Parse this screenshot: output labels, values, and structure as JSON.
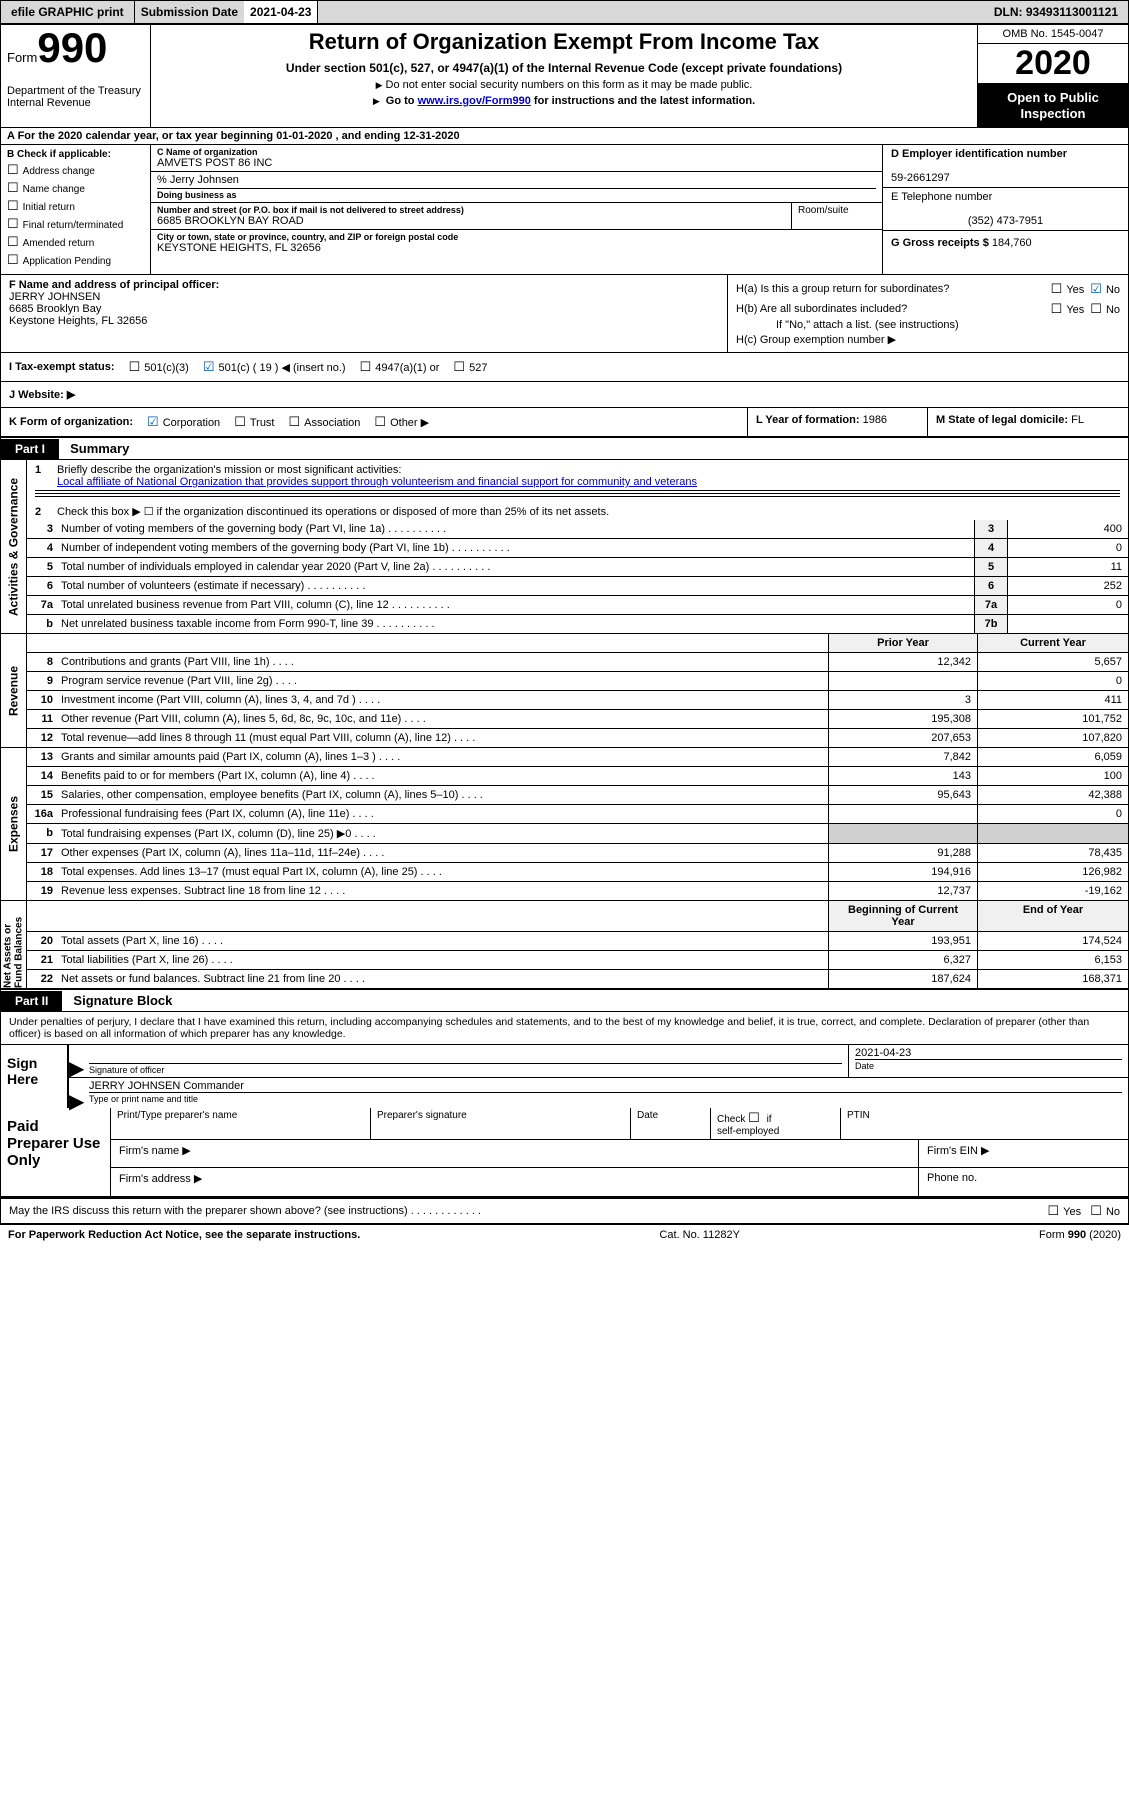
{
  "topbar": {
    "efile": "efile GRAPHIC print",
    "sub_label": "Submission Date",
    "sub_date": "2021-04-23",
    "dln": "DLN: 93493113001121"
  },
  "header": {
    "form_prefix": "Form",
    "form_number": "990",
    "dept1": "Department of the Treasury",
    "dept2": "Internal Revenue",
    "title": "Return of Organization Exempt From Income Tax",
    "sub1": "Under section 501(c), 527, or 4947(a)(1) of the Internal Revenue Code (except private foundations)",
    "sub2": "Do not enter social security numbers on this form as it may be made public.",
    "sub3_a": "Go to ",
    "sub3_link": "www.irs.gov/Form990",
    "sub3_b": " for instructions and the latest information.",
    "omb": "OMB No. 1545-0047",
    "year": "2020",
    "inspect": "Open to Public Inspection"
  },
  "A": {
    "text": "A For the 2020 calendar year, or tax year beginning 01-01-2020   , and ending 12-31-2020"
  },
  "B": {
    "label": "B Check if applicable:",
    "opts": [
      "Address change",
      "Name change",
      "Initial return",
      "Final return/terminated",
      "Amended return",
      "Application Pending"
    ]
  },
  "C": {
    "name_label": "C Name of organization",
    "name": "AMVETS POST 86 INC",
    "care_of": "% Jerry Johnsen",
    "dba_label": "Doing business as",
    "dba": "",
    "street_label": "Number and street (or P.O. box if mail is not delivered to street address)",
    "room_label": "Room/suite",
    "street": "6685 BROOKLYN BAY ROAD",
    "city_label": "City or town, state or province, country, and ZIP or foreign postal code",
    "city": "KEYSTONE HEIGHTS, FL  32656"
  },
  "D": {
    "label": "D Employer identification number",
    "value": "59-2661297"
  },
  "E": {
    "label": "E Telephone number",
    "value": "(352) 473-7951"
  },
  "G": {
    "label": "G Gross receipts $",
    "value": "184,760"
  },
  "F": {
    "label": "F  Name and address of principal officer:",
    "name": "JERRY JOHNSEN",
    "addr1": "6685 Brooklyn Bay",
    "addr2": "Keystone Heights, FL  32656"
  },
  "H": {
    "a": "H(a)  Is this a group return for subordinates?",
    "b": "H(b)  Are all subordinates included?",
    "b_note": "If \"No,\" attach a list. (see instructions)",
    "c": "H(c)  Group exemption number ▶",
    "yes": "Yes",
    "no": "No"
  },
  "I": {
    "label": "I  Tax-exempt status:",
    "opt1": "501(c)(3)",
    "opt2": "501(c) ( 19 ) ◀ (insert no.)",
    "opt3": "4947(a)(1) or",
    "opt4": "527"
  },
  "J": {
    "label": "J  Website: ▶"
  },
  "K": {
    "label": "K Form of organization:",
    "o1": "Corporation",
    "o2": "Trust",
    "o3": "Association",
    "o4": "Other ▶"
  },
  "L": {
    "label": "L Year of formation:",
    "value": "1986"
  },
  "M": {
    "label": "M State of legal domicile:",
    "value": "FL"
  },
  "part1": {
    "hdr": "Part I",
    "title": "Summary"
  },
  "s1": {
    "sidebar": "Activities & Governance",
    "l1_label": "Briefly describe the organization's mission or most significant activities:",
    "l1_text": "Local affiliate of National Organization that provides support through volunteerism and financial support for community and veterans",
    "l2": "Check this box ▶ ☐  if the organization discontinued its operations or disposed of more than 25% of its net assets.",
    "rows": [
      {
        "n": "3",
        "d": "Number of voting members of the governing body (Part VI, line 1a)",
        "c": "3",
        "v": "400"
      },
      {
        "n": "4",
        "d": "Number of independent voting members of the governing body (Part VI, line 1b)",
        "c": "4",
        "v": "0"
      },
      {
        "n": "5",
        "d": "Total number of individuals employed in calendar year 2020 (Part V, line 2a)",
        "c": "5",
        "v": "11"
      },
      {
        "n": "6",
        "d": "Total number of volunteers (estimate if necessary)",
        "c": "6",
        "v": "252"
      },
      {
        "n": "7a",
        "d": "Total unrelated business revenue from Part VIII, column (C), line 12",
        "c": "7a",
        "v": "0"
      },
      {
        "n": "b",
        "d": "Net unrelated business taxable income from Form 990-T, line 39",
        "c": "7b",
        "v": ""
      }
    ]
  },
  "pycy": {
    "py": "Prior Year",
    "cy": "Current Year",
    "boy": "Beginning of Current Year",
    "eoy": "End of Year"
  },
  "s2": {
    "sidebar": "Revenue",
    "rows": [
      {
        "n": "8",
        "d": "Contributions and grants (Part VIII, line 1h)",
        "py": "12,342",
        "cy": "5,657"
      },
      {
        "n": "9",
        "d": "Program service revenue (Part VIII, line 2g)",
        "py": "",
        "cy": "0"
      },
      {
        "n": "10",
        "d": "Investment income (Part VIII, column (A), lines 3, 4, and 7d )",
        "py": "3",
        "cy": "411"
      },
      {
        "n": "11",
        "d": "Other revenue (Part VIII, column (A), lines 5, 6d, 8c, 9c, 10c, and 11e)",
        "py": "195,308",
        "cy": "101,752"
      },
      {
        "n": "12",
        "d": "Total revenue—add lines 8 through 11 (must equal Part VIII, column (A), line 12)",
        "py": "207,653",
        "cy": "107,820"
      }
    ]
  },
  "s3": {
    "sidebar": "Expenses",
    "rows": [
      {
        "n": "13",
        "d": "Grants and similar amounts paid (Part IX, column (A), lines 1–3 )",
        "py": "7,842",
        "cy": "6,059"
      },
      {
        "n": "14",
        "d": "Benefits paid to or for members (Part IX, column (A), line 4)",
        "py": "143",
        "cy": "100"
      },
      {
        "n": "15",
        "d": "Salaries, other compensation, employee benefits (Part IX, column (A), lines 5–10)",
        "py": "95,643",
        "cy": "42,388"
      },
      {
        "n": "16a",
        "d": "Professional fundraising fees (Part IX, column (A), line 11e)",
        "py": "",
        "cy": "0"
      },
      {
        "n": "b",
        "d": "Total fundraising expenses (Part IX, column (D), line 25) ▶0",
        "py": "__GREY__",
        "cy": "__GREY__"
      },
      {
        "n": "17",
        "d": "Other expenses (Part IX, column (A), lines 11a–11d, 11f–24e)",
        "py": "91,288",
        "cy": "78,435"
      },
      {
        "n": "18",
        "d": "Total expenses. Add lines 13–17 (must equal Part IX, column (A), line 25)",
        "py": "194,916",
        "cy": "126,982"
      },
      {
        "n": "19",
        "d": "Revenue less expenses. Subtract line 18 from line 12",
        "py": "12,737",
        "cy": "-19,162"
      }
    ]
  },
  "s4": {
    "sidebar": "Net Assets or Fund Balances",
    "rows": [
      {
        "n": "20",
        "d": "Total assets (Part X, line 16)",
        "py": "193,951",
        "cy": "174,524"
      },
      {
        "n": "21",
        "d": "Total liabilities (Part X, line 26)",
        "py": "6,327",
        "cy": "6,153"
      },
      {
        "n": "22",
        "d": "Net assets or fund balances. Subtract line 21 from line 20",
        "py": "187,624",
        "cy": "168,371"
      }
    ]
  },
  "part2": {
    "hdr": "Part II",
    "title": "Signature Block"
  },
  "sig": {
    "intro": "Under penalties of perjury, I declare that I have examined this return, including accompanying schedules and statements, and to the best of my knowledge and belief, it is true, correct, and complete. Declaration of preparer (other than officer) is based on all information of which preparer has any knowledge.",
    "sign_here": "Sign Here",
    "sig_of_officer": "Signature of officer",
    "date_label": "Date",
    "date": "2021-04-23",
    "name": "JERRY JOHNSEN  Commander",
    "type_label": "Type or print name and title"
  },
  "prep": {
    "label": "Paid Preparer Use Only",
    "h1": "Print/Type preparer's name",
    "h2": "Preparer's signature",
    "h3": "Date",
    "h4a": "Check",
    "h4b": "if",
    "h4c": "self-employed",
    "h5": "PTIN",
    "firm_name": "Firm's name    ▶",
    "firm_ein": "Firm's EIN ▶",
    "firm_addr": "Firm's address ▶",
    "phone": "Phone no."
  },
  "disc": {
    "text": "May the IRS discuss this return with the preparer shown above? (see instructions)",
    "yes": "Yes",
    "no": "No"
  },
  "footer": {
    "left": "For Paperwork Reduction Act Notice, see the separate instructions.",
    "mid": "Cat. No. 11282Y",
    "right": "Form 990 (2020)"
  }
}
